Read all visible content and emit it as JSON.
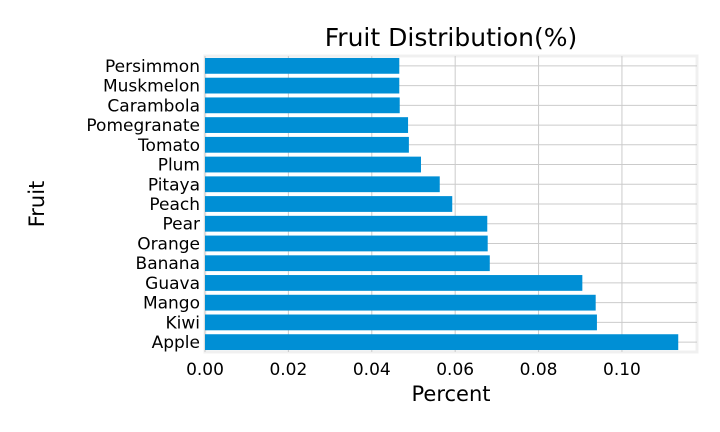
{
  "chart_data": {
    "type": "bar",
    "orientation": "horizontal",
    "title": "Fruit Distribution(%)",
    "xlabel": "Percent",
    "ylabel": "Fruit",
    "xlim": [
      0,
      0.118
    ],
    "xticks": [
      0.0,
      0.02,
      0.04,
      0.06,
      0.08,
      0.1
    ],
    "xtick_labels": [
      "0.00",
      "0.02",
      "0.04",
      "0.06",
      "0.08",
      "0.10"
    ],
    "grid": true,
    "bar_color": "#008fd5",
    "categories": [
      "Apple",
      "Kiwi",
      "Mango",
      "Guava",
      "Banana",
      "Orange",
      "Pear",
      "Peach",
      "Pitaya",
      "Plum",
      "Tomato",
      "Pomegranate",
      "Carambola",
      "Muskmelon",
      "Persimmon"
    ],
    "values": [
      0.1135,
      0.094,
      0.0937,
      0.0905,
      0.0683,
      0.0678,
      0.0677,
      0.0593,
      0.0563,
      0.0518,
      0.0489,
      0.0487,
      0.0467,
      0.0466,
      0.0466
    ]
  }
}
